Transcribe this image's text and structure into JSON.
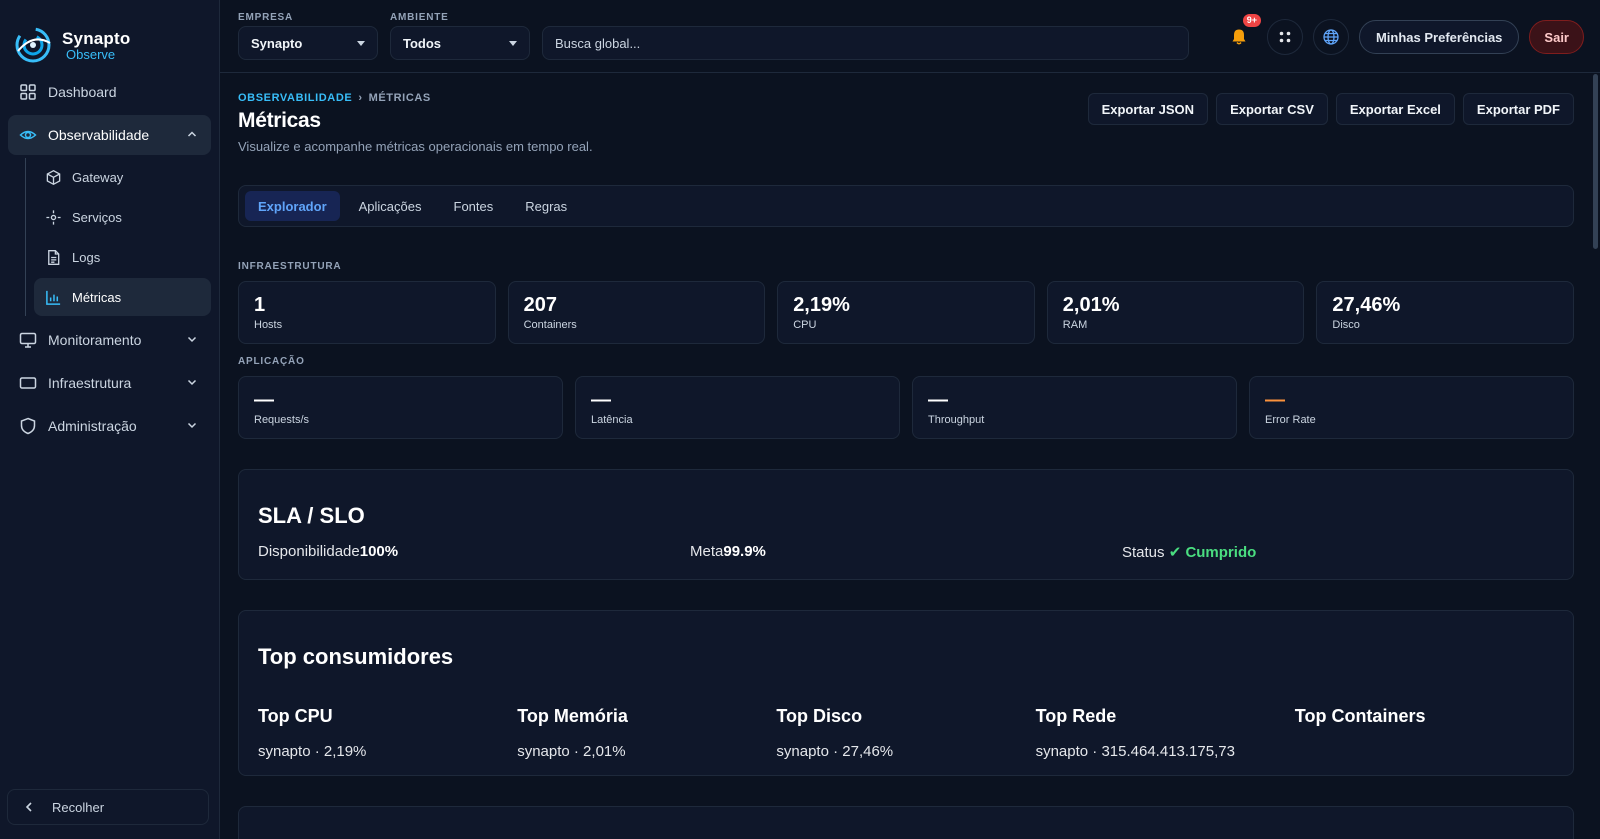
{
  "brand": {
    "name_line1": "Synapto",
    "name_line2": "Observe",
    "accent": "#38bdf8"
  },
  "sidebar": {
    "items": [
      {
        "label": "Dashboard",
        "icon": "dashboard-grid-icon"
      },
      {
        "label": "Observabilidade",
        "icon": "eye-icon",
        "expanded": true,
        "children": [
          {
            "label": "Gateway",
            "icon": "cube-icon"
          },
          {
            "label": "Serviços",
            "icon": "services-icon"
          },
          {
            "label": "Logs",
            "icon": "document-icon"
          },
          {
            "label": "Métricas",
            "icon": "bar-chart-icon",
            "active": true
          }
        ]
      },
      {
        "label": "Monitoramento",
        "icon": "monitor-icon"
      },
      {
        "label": "Infraestrutura",
        "icon": "server-icon"
      },
      {
        "label": "Administração",
        "icon": "shield-icon"
      }
    ],
    "collapse_label": "Recolher"
  },
  "topbar": {
    "company_label": "EMPRESA",
    "company_value": "Synapto",
    "env_label": "AMBIENTE",
    "env_value": "Todos",
    "search_placeholder": "Busca global...",
    "notif_badge": "9+",
    "prefs_label": "Minhas Preferências",
    "exit_label": "Sair"
  },
  "page": {
    "breadcrumb": [
      "OBSERVABILIDADE",
      "MÉTRICAS"
    ],
    "title": "Métricas",
    "subtitle": "Visualize e acompanhe métricas operacionais em tempo real.",
    "exports": [
      "Exportar JSON",
      "Exportar CSV",
      "Exportar Excel",
      "Exportar PDF"
    ],
    "tabs": [
      "Explorador",
      "Aplicações",
      "Fontes",
      "Regras"
    ],
    "active_tab": 0
  },
  "infra": {
    "label": "INFRAESTRUTURA",
    "cards": [
      {
        "value": "1",
        "label": "Hosts"
      },
      {
        "value": "207",
        "label": "Containers"
      },
      {
        "value": "2,19%",
        "label": "CPU"
      },
      {
        "value": "2,01%",
        "label": "RAM"
      },
      {
        "value": "27,46%",
        "label": "Disco"
      }
    ]
  },
  "app": {
    "label": "APLICAÇÃO",
    "cards": [
      {
        "value": "—",
        "label": "Requests/s"
      },
      {
        "value": "—",
        "label": "Latência"
      },
      {
        "value": "—",
        "label": "Throughput"
      },
      {
        "value": "—",
        "label": "Error Rate"
      }
    ]
  },
  "sla": {
    "title": "SLA / SLO",
    "availability_label": "Disponibilidade",
    "availability_value": "100%",
    "target_label": "Meta",
    "target_value": "99.9%",
    "status_label": "Status",
    "status_value": "✔ Cumprido",
    "status_color": "#4ade80"
  },
  "top": {
    "title": "Top consumidores",
    "columns": [
      {
        "title": "Top CPU",
        "value": "synapto · 2,19%"
      },
      {
        "title": "Top Memória",
        "value": "synapto · 2,01%"
      },
      {
        "title": "Top Disco",
        "value": "synapto · 27,46%"
      },
      {
        "title": "Top Rede",
        "value": "synapto · 315.464.413.175,73"
      },
      {
        "title": "Top Containers",
        "value": ""
      }
    ]
  }
}
